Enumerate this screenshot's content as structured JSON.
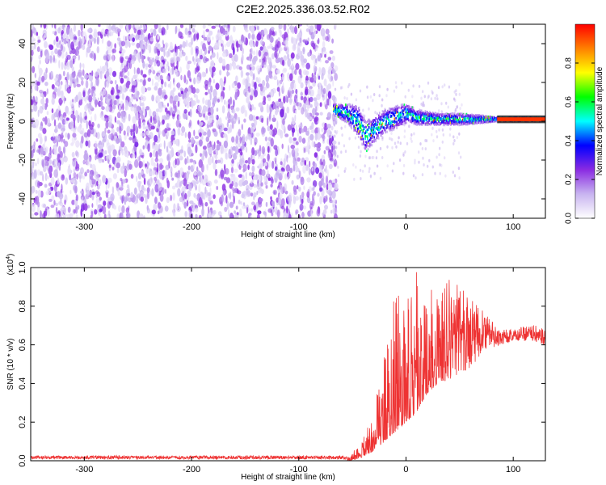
{
  "title": "C2E2.2025.336.03.52.R02",
  "chart_data": [
    {
      "type": "heatmap",
      "xlabel": "Height of straight line (km)",
      "ylabel": "Frequency (Hz)",
      "xlim": [
        -350,
        130
      ],
      "ylim": [
        -50,
        50
      ],
      "x_ticks": [
        -300,
        -200,
        -100,
        0,
        100
      ],
      "x_tick_labels": [
        "-300",
        "-200",
        "-100",
        "0",
        "100"
      ],
      "y_ticks": [
        -40,
        -20,
        0,
        20,
        40
      ],
      "y_tick_labels": [
        "-40",
        "-20",
        "0",
        "20",
        "40"
      ],
      "colorbar": {
        "label": "Normalized spectral amplitude",
        "range": [
          0,
          1
        ],
        "ticks": [
          0,
          0.2,
          0.4,
          0.6,
          0.8
        ],
        "tick_labels": [
          "0.0",
          "0.2",
          "0.4",
          "0.6",
          "0.8"
        ],
        "colors": [
          "#ffffff",
          "#c8b4f0",
          "#8a2be2",
          "#0000ff",
          "#00ffff",
          "#00ff00",
          "#ffff00",
          "#ff8000",
          "#ff0000"
        ]
      },
      "features": {
        "noise_region_x": [
          -350,
          -65
        ],
        "signal_start_x": -68,
        "signal_ridge_x": [
          -68,
          -55,
          -45,
          -38,
          -30,
          -20,
          -10,
          0,
          10,
          30,
          50,
          70,
          85,
          130
        ],
        "signal_ridge_y": [
          6,
          4,
          0,
          -8,
          -4,
          0,
          2,
          4,
          2,
          1,
          1,
          1,
          1,
          1
        ],
        "signal_half_width_hz": [
          3,
          5,
          8,
          8,
          7,
          6,
          6,
          5,
          4,
          3,
          3,
          2,
          1,
          1
        ],
        "peak_amplitude": 1.0
      }
    },
    {
      "type": "line",
      "xlabel": "Height of straight line (km)",
      "ylabel": "SNR (10 * v/v)",
      "y_multiplier_label": "(x10",
      "y_multiplier_exp": "4",
      "y_multiplier_close": ")",
      "xlim": [
        -350,
        130
      ],
      "ylim": [
        0,
        1.0
      ],
      "x_ticks": [
        -300,
        -200,
        -100,
        0,
        100
      ],
      "x_tick_labels": [
        "-300",
        "-200",
        "-100",
        "0",
        "100"
      ],
      "y_ticks": [
        0,
        0.2,
        0.4,
        0.6,
        0.8,
        1.0
      ],
      "y_tick_labels": [
        "0.0",
        "0.2",
        "0.4",
        "0.6",
        "0.8",
        "1.0"
      ],
      "color": "#ee3333",
      "envelope_x": [
        -350,
        -60,
        -50,
        -40,
        -30,
        -20,
        -10,
        0,
        10,
        20,
        30,
        40,
        50,
        60,
        70,
        80,
        90,
        100,
        110,
        120,
        130
      ],
      "envelope_low": [
        0.0,
        0.0,
        0.0,
        0.02,
        0.05,
        0.1,
        0.15,
        0.2,
        0.25,
        0.35,
        0.4,
        0.42,
        0.45,
        0.48,
        0.55,
        0.58,
        0.6,
        0.62,
        0.62,
        0.62,
        0.6
      ],
      "envelope_high": [
        0.03,
        0.03,
        0.05,
        0.12,
        0.3,
        0.6,
        0.9,
        0.8,
        1.0,
        0.9,
        0.88,
        0.95,
        0.9,
        0.85,
        0.8,
        0.72,
        0.68,
        0.68,
        0.7,
        0.72,
        0.7
      ]
    }
  ]
}
